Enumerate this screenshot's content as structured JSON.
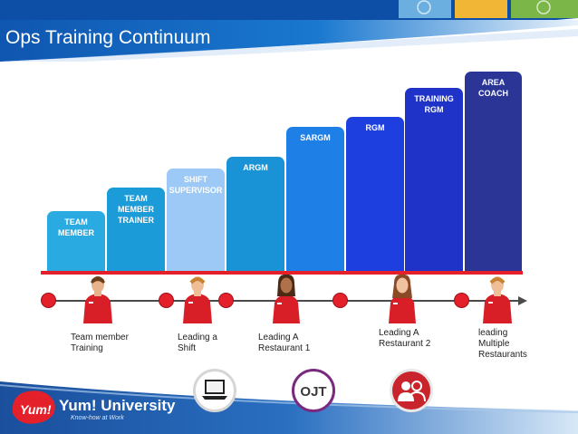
{
  "slide": {
    "title": "Ops Training Continuum"
  },
  "columns": [
    {
      "label": "TEAM\nMEMBER",
      "color": "#29abe2"
    },
    {
      "label": "TEAM\nMEMBER\nTRAINER",
      "color": "#1b9bd8"
    },
    {
      "label": "SHIFT\nSUPERVISOR",
      "color": "#9cc9f5"
    },
    {
      "label": "ARGM",
      "color": "#1a93d6"
    },
    {
      "label": "SARGM",
      "color": "#1e7fe6"
    },
    {
      "label": "RGM",
      "color": "#1d3fe0"
    },
    {
      "label": "TRAINING\nRGM",
      "color": "#1f33c8"
    },
    {
      "label": "AREA\nCOACH",
      "color": "#2a3596"
    }
  ],
  "milestones": [
    {
      "caption": "Team member\nTraining"
    },
    {
      "caption": "Leading a\nShift"
    },
    {
      "caption": "Leading A\nRestaurant  1"
    },
    {
      "caption": "Leading A\nRestaurant  2"
    },
    {
      "caption": "leading\nMultiple\nRestaurants"
    }
  ],
  "bottom_icons": {
    "laptop": "laptop-icon",
    "ojt_label": "OJT",
    "people": "people-icon"
  },
  "footer": {
    "logo_text": "Yum! University",
    "tagline": "Know-how at Work"
  },
  "colors": {
    "header_blue": "#1660b8",
    "accent_red": "#e4212b",
    "footer_blue": "#1a4f9c"
  }
}
